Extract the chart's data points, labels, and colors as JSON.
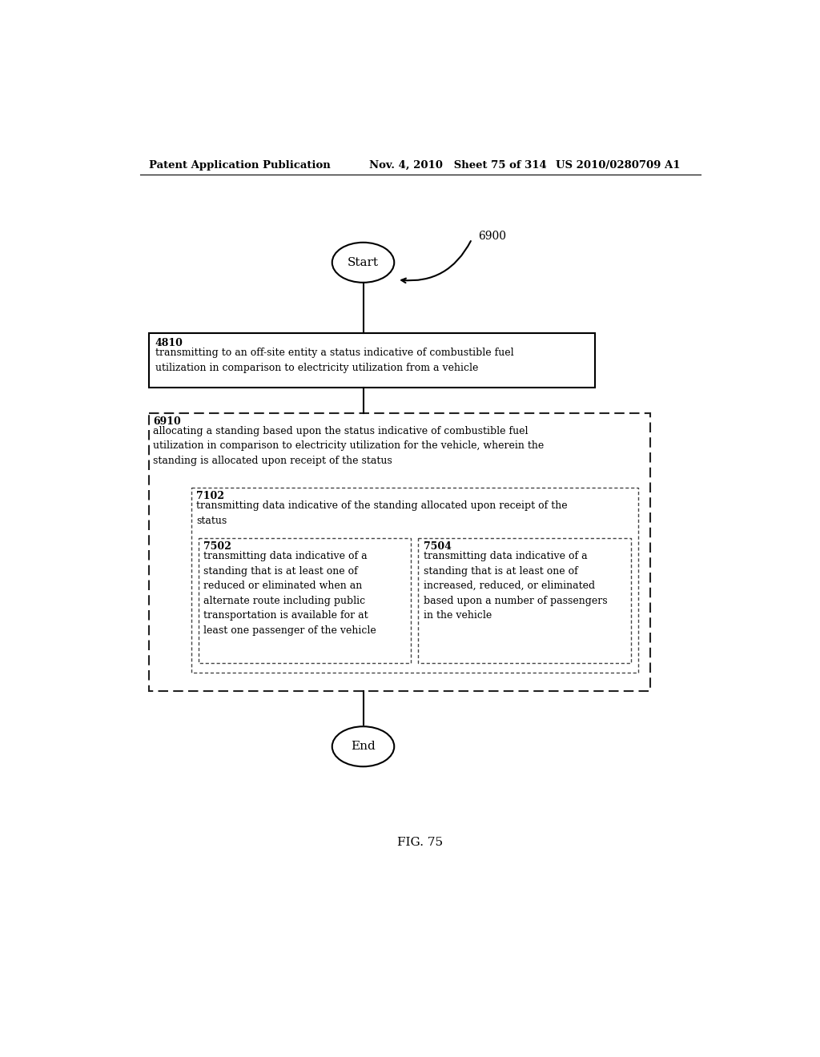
{
  "header_left": "Patent Application Publication",
  "header_mid": "Nov. 4, 2010   Sheet 75 of 314",
  "header_right": "US 2010/0280709 A1",
  "fig_label": "FIG. 75",
  "diagram_label": "6900",
  "start_label": "Start",
  "end_label": "End",
  "box4810_id": "4810",
  "box4810_text": "transmitting to an off-site entity a status indicative of combustible fuel\nutilization in comparison to electricity utilization from a vehicle",
  "box6910_id": "6910",
  "box6910_text": "allocating a standing based upon the status indicative of combustible fuel\nutilization in comparison to electricity utilization for the vehicle, wherein the\nstanding is allocated upon receipt of the status",
  "box7102_id": "7102",
  "box7102_text": "transmitting data indicative of the standing allocated upon receipt of the\nstatus",
  "box7502_id": "7502",
  "box7502_text": "transmitting data indicative of a\nstanding that is at least one of\nreduced or eliminated when an\nalternate route including public\ntransportation is available for at\nleast one passenger of the vehicle",
  "box7504_id": "7504",
  "box7504_text": "transmitting data indicative of a\nstanding that is at least one of\nincreased, reduced, or eliminated\nbased upon a number of passengers\nin the vehicle",
  "bg_color": "#ffffff",
  "text_color": "#000000"
}
